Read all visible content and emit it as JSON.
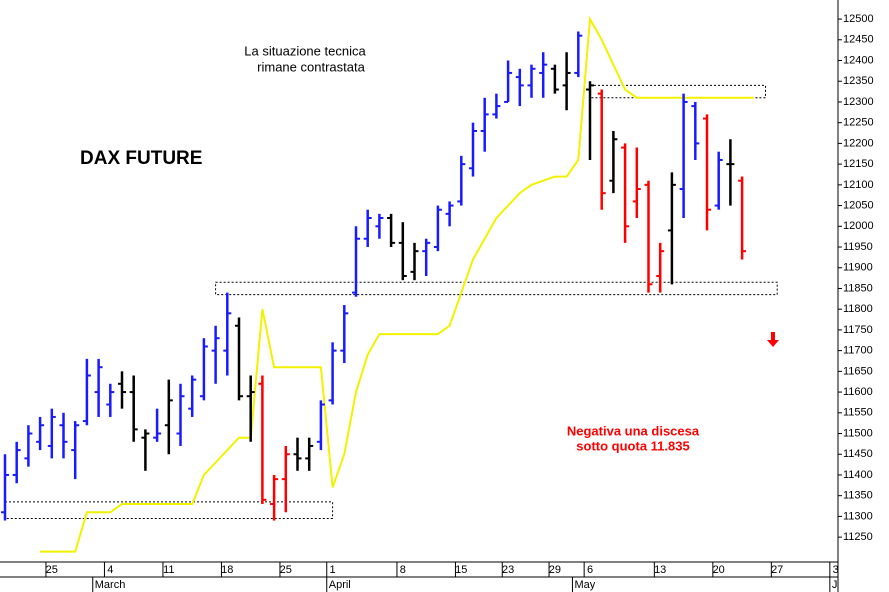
{
  "chart_data": {
    "type": "ohlc",
    "title": "DAX FUTURE",
    "annotations": [
      {
        "lines": [
          "La situazione tecnica",
          "rimane contrastata"
        ],
        "color": "#000000"
      },
      {
        "lines": [
          "Negativa una discesa",
          "sotto quota 11.835"
        ],
        "color": "#ff0000"
      }
    ],
    "categories": [
      null,
      null,
      null,
      null,
      "25",
      null,
      null,
      null,
      null,
      "4",
      null,
      null,
      null,
      null,
      "11",
      null,
      null,
      null,
      null,
      "18",
      null,
      null,
      null,
      null,
      "25",
      null,
      null,
      null,
      "1",
      null,
      null,
      null,
      null,
      null,
      "8",
      null,
      null,
      null,
      null,
      "15",
      null,
      null,
      null,
      "23",
      null,
      null,
      null,
      "29",
      null,
      null,
      "6",
      null,
      null,
      null,
      null,
      null,
      "13",
      null,
      null,
      null,
      null,
      "20",
      null,
      null,
      null,
      null,
      "27",
      null,
      null,
      null,
      null,
      "3"
    ],
    "month_starts": [
      {
        "label": "March",
        "index": 8
      },
      {
        "label": "April",
        "index": 28
      },
      {
        "label": "May",
        "index": 49
      },
      {
        "label": "J",
        "index": 71
      }
    ],
    "open": [
      11310,
      11400,
      11440,
      11480,
      11470,
      11520,
      11460,
      11530,
      11600,
      11570,
      11620,
      11600,
      11490,
      11490,
      11520,
      11500,
      11560,
      11590,
      11700,
      11700,
      11760,
      11590,
      11620,
      11330,
      11390,
      11450,
      11440,
      11480,
      11580,
      11700,
      11840,
      11970,
      12000,
      12020,
      11960,
      11890,
      11940,
      11950,
      12030,
      12060,
      12140,
      12230,
      12270,
      12300,
      12360,
      12340,
      12370,
      12380,
      12340,
      12370,
      12330,
      12320,
      12110,
      12190,
      12060,
      12100,
      11880,
      11990,
      12090,
      12290,
      12260,
      12050,
      12150,
      12110,
      null,
      null,
      null,
      null,
      null,
      null,
      null,
      null
    ],
    "high": [
      11450,
      11480,
      11520,
      11540,
      11560,
      11550,
      11530,
      11680,
      11680,
      11620,
      11650,
      11640,
      11510,
      11560,
      11630,
      11620,
      11640,
      11730,
      11760,
      11840,
      11780,
      11640,
      11640,
      11400,
      11470,
      11490,
      11490,
      11580,
      11720,
      11810,
      12000,
      12040,
      12030,
      12030,
      12010,
      11960,
      11970,
      12050,
      12060,
      12170,
      12250,
      12310,
      12320,
      12400,
      12380,
      12390,
      12420,
      12390,
      12420,
      12470,
      12350,
      12330,
      12230,
      12200,
      12190,
      12110,
      11960,
      12130,
      12320,
      12300,
      12270,
      12180,
      12210,
      12120,
      null,
      null,
      null,
      null,
      null,
      null,
      null,
      null
    ],
    "low": [
      11290,
      11380,
      11420,
      11460,
      11440,
      11440,
      11390,
      11520,
      11540,
      11540,
      11560,
      11480,
      11410,
      11480,
      11450,
      11470,
      11540,
      11580,
      11620,
      11640,
      11580,
      11480,
      11330,
      11290,
      11310,
      11410,
      11410,
      11460,
      11570,
      11670,
      11830,
      11950,
      11970,
      11950,
      11870,
      11870,
      11880,
      11940,
      12000,
      12050,
      12120,
      12180,
      12260,
      12300,
      12290,
      12310,
      12310,
      12320,
      12280,
      12360,
      12160,
      12040,
      12080,
      11960,
      12020,
      11840,
      11840,
      11860,
      12020,
      12160,
      11990,
      12040,
      12050,
      11920,
      null,
      null,
      null,
      null,
      null,
      null,
      null,
      null
    ],
    "close": [
      11400,
      11460,
      11500,
      11520,
      11540,
      11480,
      11520,
      11640,
      11660,
      11600,
      11600,
      11510,
      11500,
      11500,
      11580,
      11590,
      11630,
      11710,
      11730,
      11790,
      11590,
      11600,
      11340,
      11390,
      11450,
      11440,
      11470,
      11570,
      11700,
      11790,
      11970,
      12020,
      12020,
      11960,
      11880,
      11940,
      11960,
      12040,
      12050,
      12150,
      12230,
      12270,
      12290,
      12370,
      12340,
      12380,
      12390,
      12330,
      12370,
      12460,
      12340,
      12080,
      12210,
      12000,
      12090,
      11860,
      11940,
      12100,
      12300,
      12200,
      12040,
      12160,
      12150,
      11940,
      null,
      null,
      null,
      null,
      null,
      null,
      null,
      null
    ],
    "bar_colors": [
      "#1a1aff",
      "#1a1aff",
      "#1a1aff",
      "#1a1aff",
      "#1a1aff",
      "#1a1aff",
      "#1a1aff",
      "#1a1aff",
      "#1a1aff",
      "#1a1aff",
      "#000000",
      "#000000",
      "#000000",
      "#1a1aff",
      "#000000",
      "#1a1aff",
      "#1a1aff",
      "#1a1aff",
      "#1a1aff",
      "#1a1aff",
      "#000000",
      "#000000",
      "#ff0000",
      "#ff0000",
      "#ff0000",
      "#000000",
      "#000000",
      "#1a1aff",
      "#1a1aff",
      "#1a1aff",
      "#1a1aff",
      "#1a1aff",
      "#1a1aff",
      "#000000",
      "#000000",
      "#000000",
      "#1a1aff",
      "#1a1aff",
      "#1a1aff",
      "#1a1aff",
      "#1a1aff",
      "#1a1aff",
      "#1a1aff",
      "#1a1aff",
      "#1a1aff",
      "#1a1aff",
      "#1a1aff",
      "#000000",
      "#000000",
      "#1a1aff",
      "#000000",
      "#ff0000",
      "#000000",
      "#ff0000",
      "#ff0000",
      "#ff0000",
      "#ff0000",
      "#000000",
      "#1a1aff",
      "#1a1aff",
      "#ff0000",
      "#1a1aff",
      "#000000",
      "#ff0000",
      null,
      null,
      null,
      null,
      null,
      null,
      null,
      null
    ],
    "line": {
      "color": "#f2f200",
      "values": [
        null,
        null,
        null,
        11215,
        11215,
        11215,
        11215,
        11310,
        11310,
        11310,
        11330,
        11330,
        11330,
        11330,
        11330,
        11330,
        11330,
        11400,
        11430,
        11460,
        11490,
        11490,
        11800,
        11660,
        11660,
        11660,
        11660,
        11660,
        11370,
        11450,
        11600,
        11690,
        11740,
        11740,
        11740,
        11740,
        11740,
        11740,
        11760,
        11840,
        11920,
        11970,
        12020,
        12050,
        12080,
        12100,
        12110,
        12120,
        12120,
        12160,
        12500,
        12450,
        12390,
        12330,
        12310,
        12310,
        12310,
        12310,
        12310,
        12310,
        12310,
        12310,
        12310,
        12310,
        12310,
        null,
        null,
        null,
        null,
        null,
        null,
        null
      ]
    },
    "zones": [
      {
        "low": 11835,
        "high": 11865,
        "from": 18,
        "to": 66
      },
      {
        "low": 11295,
        "high": 11335,
        "from": 0,
        "to": 28
      },
      {
        "low": 12310,
        "high": 12340,
        "from": 50,
        "to": 65
      }
    ],
    "ylim": [
      11190,
      12546
    ],
    "yticks": [
      11250,
      11300,
      11350,
      11400,
      11450,
      11500,
      11550,
      11600,
      11650,
      11700,
      11750,
      11800,
      11850,
      11900,
      11950,
      12000,
      12050,
      12100,
      12150,
      12200,
      12250,
      12300,
      12350,
      12400,
      12450,
      12500
    ]
  }
}
